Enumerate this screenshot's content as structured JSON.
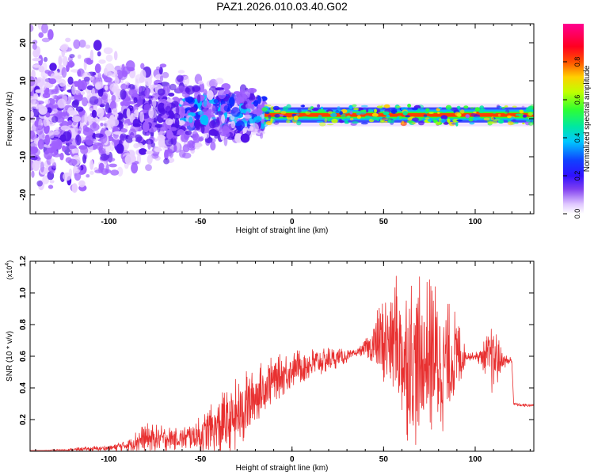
{
  "figure_title": "PAZ1.2026.010.03.40.G02",
  "chart_data": [
    {
      "type": "heatmap",
      "title": "PAZ1.2026.010.03.40.G02",
      "xlabel": "Height of straight line (km)",
      "ylabel": "Frequency (Hz)",
      "xlim": [
        -143,
        132
      ],
      "ylim": [
        -25,
        25
      ],
      "x_ticks": [
        -100,
        -50,
        0,
        50,
        100
      ],
      "y_ticks": [
        -20,
        -10,
        0,
        10,
        20
      ],
      "x_tick_labels": [
        "-100",
        "-50",
        "0",
        "50",
        "100"
      ],
      "y_tick_labels": [
        "-20",
        "-10",
        "0",
        "10",
        "20"
      ],
      "description_points": {
        "scattered_region_km": [
          -143,
          -15
        ],
        "narrow_band_region_km": [
          -15,
          132
        ],
        "band_center_hz": 1,
        "band_halfwidth_hz": 1.5
      },
      "colorbar": {
        "label": "Normalized spectral amplitude",
        "range": [
          0,
          1
        ],
        "ticks": [
          0.0,
          0.2,
          0.4,
          0.6,
          0.8
        ],
        "tick_labels": [
          "0.0",
          "0.2",
          "0.4",
          "0.6",
          "0.8"
        ],
        "colormap": [
          "#ffffff",
          "#e8d0ff",
          "#a060ff",
          "#5010e8",
          "#1020ff",
          "#00c0ff",
          "#00e8a0",
          "#30ff30",
          "#c0ff00",
          "#ffd000",
          "#ff4000",
          "#ff0040",
          "#ff0090"
        ]
      }
    },
    {
      "type": "line",
      "xlabel": "Height of straight line (km)",
      "ylabel": "SNR (10 * v/v)",
      "scale_label": "(x10",
      "scale_exponent": "4",
      "scale_close": ")",
      "xlim": [
        -143,
        132
      ],
      "ylim": [
        0,
        1.2
      ],
      "x_ticks": [
        -100,
        -50,
        0,
        50,
        100
      ],
      "y_ticks": [
        0.2,
        0.4,
        0.6,
        0.8,
        1.0,
        1.2
      ],
      "x_tick_labels": [
        "-100",
        "-50",
        "0",
        "50",
        "100"
      ],
      "y_tick_labels": [
        "0.2",
        "0.4",
        "0.6",
        "0.8",
        "1.0",
        "1.2"
      ],
      "series": [
        {
          "name": "SNR",
          "color": "#e83030",
          "envelope_x": [
            -143,
            -120,
            -100,
            -90,
            -80,
            -70,
            -60,
            -50,
            -40,
            -30,
            -20,
            -10,
            0,
            10,
            20,
            30,
            35,
            40,
            45,
            50,
            55,
            60,
            65,
            70,
            75,
            80,
            85,
            90,
            95,
            100,
            105,
            110,
            115,
            119,
            120,
            121,
            125,
            132
          ],
          "envelope_mean": [
            0.0,
            0.01,
            0.02,
            0.04,
            0.08,
            0.08,
            0.08,
            0.1,
            0.15,
            0.22,
            0.35,
            0.45,
            0.52,
            0.55,
            0.58,
            0.6,
            0.62,
            0.65,
            0.66,
            0.68,
            0.72,
            0.62,
            0.58,
            0.55,
            0.6,
            0.58,
            0.55,
            0.6,
            0.6,
            0.6,
            0.6,
            0.58,
            0.57,
            0.57,
            0.57,
            0.3,
            0.29,
            0.29
          ],
          "envelope_spread": [
            0.0,
            0.01,
            0.02,
            0.04,
            0.1,
            0.08,
            0.07,
            0.12,
            0.2,
            0.25,
            0.2,
            0.15,
            0.12,
            0.1,
            0.08,
            0.04,
            0.02,
            0.05,
            0.2,
            0.3,
            0.4,
            0.5,
            0.55,
            0.55,
            0.5,
            0.5,
            0.4,
            0.3,
            0.03,
            0.02,
            0.1,
            0.25,
            0.05,
            0.03,
            0.02,
            0.01,
            0.01,
            0.01
          ]
        }
      ]
    }
  ]
}
